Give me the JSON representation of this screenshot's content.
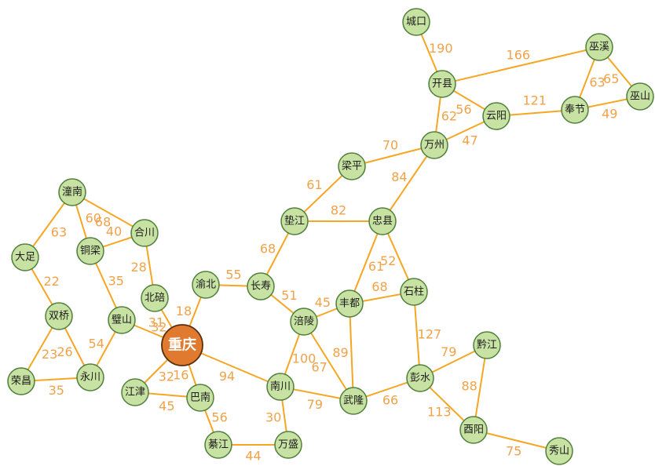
{
  "colors": {
    "edge": "#f5a623",
    "weight_text": "#f0a24a",
    "node_fill": "#c7e2a3",
    "node_stroke": "#4f7f3a",
    "center_fill": "#e07a2e"
  },
  "nodes": [
    {
      "id": "chengkou",
      "label": "城口"
    },
    {
      "id": "kaixian",
      "label": "开县"
    },
    {
      "id": "wuxi",
      "label": "巫溪"
    },
    {
      "id": "wushan",
      "label": "巫山"
    },
    {
      "id": "yunyang",
      "label": "云阳"
    },
    {
      "id": "fengjie",
      "label": "奉节"
    },
    {
      "id": "wanzhou",
      "label": "万州"
    },
    {
      "id": "liangping",
      "label": "梁平"
    },
    {
      "id": "dianjiang",
      "label": "垫江"
    },
    {
      "id": "zhongxian",
      "label": "忠县"
    },
    {
      "id": "tongnan",
      "label": "潼南"
    },
    {
      "id": "hechuan",
      "label": "合川"
    },
    {
      "id": "tongliang",
      "label": "铜梁"
    },
    {
      "id": "dazu",
      "label": "大足"
    },
    {
      "id": "beibei",
      "label": "北碚"
    },
    {
      "id": "yubei",
      "label": "渝北"
    },
    {
      "id": "changshou",
      "label": "长寿"
    },
    {
      "id": "fengdu",
      "label": "丰都"
    },
    {
      "id": "shizhu",
      "label": "石柱"
    },
    {
      "id": "shuangqiao",
      "label": "双桥"
    },
    {
      "id": "bishan",
      "label": "璧山"
    },
    {
      "id": "fuling",
      "label": "涪陵"
    },
    {
      "id": "chongqing",
      "label": "重庆",
      "center": true
    },
    {
      "id": "rongchang",
      "label": "荣昌"
    },
    {
      "id": "yongchuan",
      "label": "永川"
    },
    {
      "id": "jiangjin",
      "label": "江津"
    },
    {
      "id": "banan",
      "label": "巴南"
    },
    {
      "id": "nanchuan",
      "label": "南川"
    },
    {
      "id": "wulong",
      "label": "武隆"
    },
    {
      "id": "pengshui",
      "label": "彭水"
    },
    {
      "id": "qianjiang",
      "label": "黔江"
    },
    {
      "id": "qijiang",
      "label": "綦江"
    },
    {
      "id": "wansheng",
      "label": "万盛"
    },
    {
      "id": "youyang",
      "label": "酉阳"
    },
    {
      "id": "xiushan",
      "label": "秀山"
    }
  ],
  "edges": [
    {
      "from": "chengkou",
      "to": "kaixian",
      "weight": "190"
    },
    {
      "from": "kaixian",
      "to": "wuxi",
      "weight": "166"
    },
    {
      "from": "wuxi",
      "to": "wushan",
      "weight": "65"
    },
    {
      "from": "wuxi",
      "to": "fengjie",
      "weight": "63"
    },
    {
      "from": "fengjie",
      "to": "wushan",
      "weight": "49"
    },
    {
      "from": "kaixian",
      "to": "yunyang",
      "weight": "56"
    },
    {
      "from": "yunyang",
      "to": "fengjie",
      "weight": "121"
    },
    {
      "from": "kaixian",
      "to": "wanzhou",
      "weight": "62"
    },
    {
      "from": "wanzhou",
      "to": "yunyang",
      "weight": "47"
    },
    {
      "from": "liangping",
      "to": "wanzhou",
      "weight": "70"
    },
    {
      "from": "wanzhou",
      "to": "zhongxian",
      "weight": "84"
    },
    {
      "from": "dianjiang",
      "to": "liangping",
      "weight": "61"
    },
    {
      "from": "dianjiang",
      "to": "zhongxian",
      "weight": "82"
    },
    {
      "from": "changshou",
      "to": "dianjiang",
      "weight": "68"
    },
    {
      "from": "zhongxian",
      "to": "fengdu",
      "weight": "61"
    },
    {
      "from": "zhongxian",
      "to": "shizhu",
      "weight": "52"
    },
    {
      "from": "fengdu",
      "to": "shizhu",
      "weight": "68"
    },
    {
      "from": "fuling",
      "to": "fengdu",
      "weight": "45"
    },
    {
      "from": "fengdu",
      "to": "wulong",
      "weight": "89"
    },
    {
      "from": "shizhu",
      "to": "pengshui",
      "weight": "127"
    },
    {
      "from": "tongnan",
      "to": "hechuan",
      "weight": "68"
    },
    {
      "from": "tongnan",
      "to": "tongliang",
      "weight": "60"
    },
    {
      "from": "tongnan",
      "to": "dazu",
      "weight": "63"
    },
    {
      "from": "tongliang",
      "to": "hechuan",
      "weight": "40"
    },
    {
      "from": "hechuan",
      "to": "beibei",
      "weight": "28"
    },
    {
      "from": "tongliang",
      "to": "bishan",
      "weight": "35"
    },
    {
      "from": "dazu",
      "to": "shuangqiao",
      "weight": "22"
    },
    {
      "from": "shuangqiao",
      "to": "rongchang",
      "weight": "23"
    },
    {
      "from": "shuangqiao",
      "to": "yongchuan",
      "weight": "26"
    },
    {
      "from": "rongchang",
      "to": "yongchuan",
      "weight": "35"
    },
    {
      "from": "yongchuan",
      "to": "bishan",
      "weight": "54"
    },
    {
      "from": "bishan",
      "to": "chongqing",
      "weight": "31"
    },
    {
      "from": "beibei",
      "to": "chongqing",
      "weight": "32"
    },
    {
      "from": "yubei",
      "to": "chongqing",
      "weight": "18"
    },
    {
      "from": "yubei",
      "to": "changshou",
      "weight": "55"
    },
    {
      "from": "changshou",
      "to": "fuling",
      "weight": "51"
    },
    {
      "from": "chongqing",
      "to": "jiangjin",
      "weight": "32"
    },
    {
      "from": "chongqing",
      "to": "banan",
      "weight": "16"
    },
    {
      "from": "chongqing",
      "to": "nanchuan",
      "weight": "94"
    },
    {
      "from": "jiangjin",
      "to": "banan",
      "weight": "45"
    },
    {
      "from": "banan",
      "to": "qijiang",
      "weight": "56"
    },
    {
      "from": "qijiang",
      "to": "wansheng",
      "weight": "44"
    },
    {
      "from": "nanchuan",
      "to": "wansheng",
      "weight": "30"
    },
    {
      "from": "fuling",
      "to": "nanchuan",
      "weight": "100"
    },
    {
      "from": "fuling",
      "to": "wulong",
      "weight": "67"
    },
    {
      "from": "nanchuan",
      "to": "wulong",
      "weight": "79"
    },
    {
      "from": "wulong",
      "to": "pengshui",
      "weight": "66"
    },
    {
      "from": "pengshui",
      "to": "qianjiang",
      "weight": "79"
    },
    {
      "from": "pengshui",
      "to": "youyang",
      "weight": "113"
    },
    {
      "from": "qianjiang",
      "to": "youyang",
      "weight": "88"
    },
    {
      "from": "youyang",
      "to": "xiushan",
      "weight": "75"
    }
  ]
}
